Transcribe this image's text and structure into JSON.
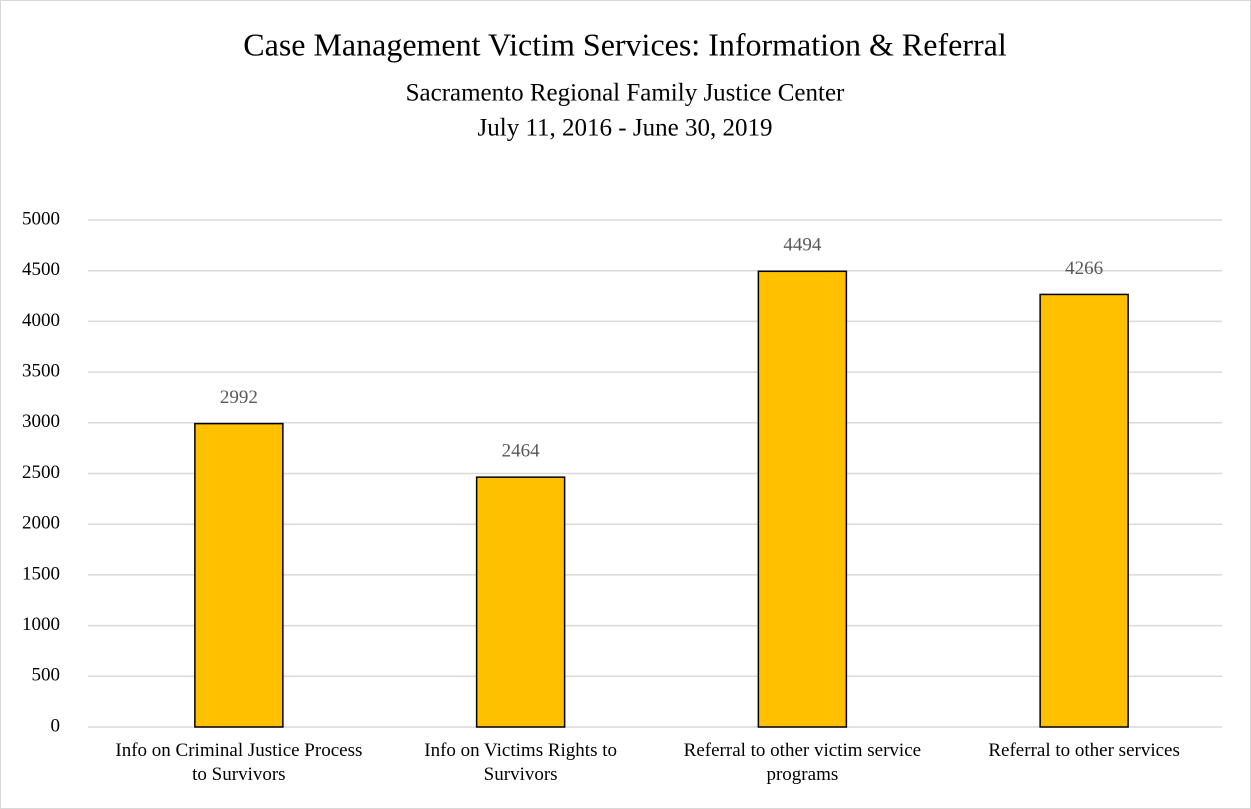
{
  "chart_data": {
    "type": "bar",
    "title": "Case Management Victim Services: Information & Referral",
    "subtitle": [
      "Sacramento Regional Family Justice Center",
      "July 11, 2016 - June 30, 2019"
    ],
    "categories": [
      "Info on Criminal Justice Process to Survivors",
      "Info on Victims Rights to Survivors",
      "Referral to other victim service programs",
      "Referral to other services"
    ],
    "values": [
      2992,
      2464,
      4494,
      4266
    ],
    "color": "#ffc000",
    "ylim": [
      0,
      5000
    ],
    "yticks": [
      0,
      500,
      1000,
      1500,
      2000,
      2500,
      3000,
      3500,
      4000,
      4500,
      5000
    ],
    "grid": true
  }
}
